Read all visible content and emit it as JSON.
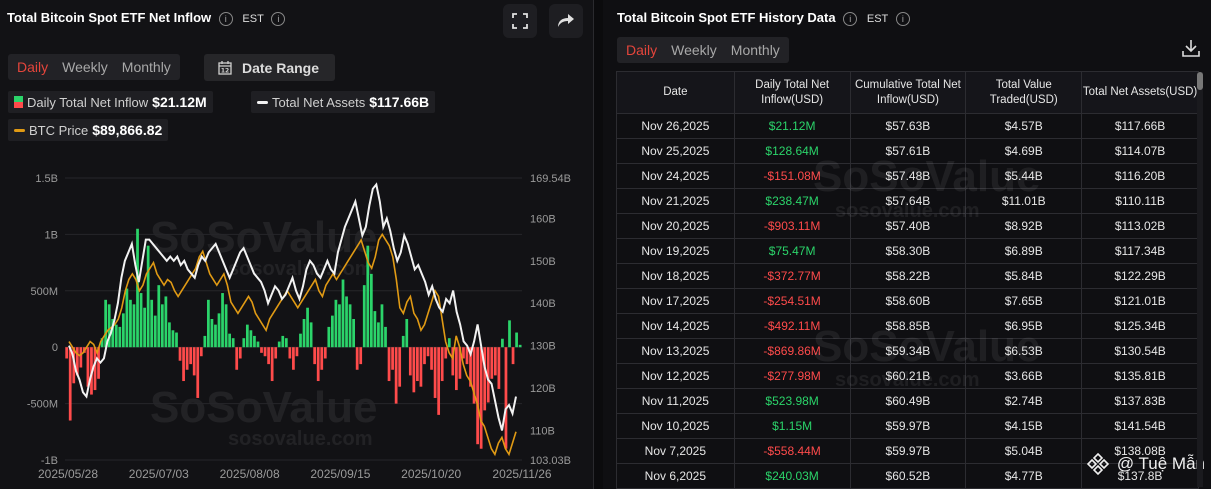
{
  "left": {
    "title": "Total Bitcoin Spot ETF Net Inflow",
    "timezone": "EST",
    "tabs": [
      "Daily",
      "Weekly",
      "Monthly"
    ],
    "active_tab": "Daily",
    "date_range_label": "Date Range",
    "legend": {
      "inflow_label": "Daily Total Net Inflow",
      "inflow_value": "$21.12M",
      "assets_label": "Total Net Assets",
      "assets_value": "$117.66B",
      "btc_label": "BTC Price",
      "btc_value": "$89,866.82"
    },
    "watermark_top": "SoSoValue",
    "watermark_top_sub": "sosovalue.com",
    "watermark_bottom": "SoSoValue",
    "watermark_bottom_sub": "sosovalue.com"
  },
  "right": {
    "title": "Total Bitcoin Spot ETF History Data",
    "timezone": "EST",
    "tabs": [
      "Daily",
      "Weekly",
      "Monthly"
    ],
    "active_tab": "Daily",
    "headers": [
      "Date",
      "Daily Total Net Inflow(USD)",
      "Cumulative Total Net Inflow(USD)",
      "Total Value Traded(USD)",
      "Total Net Assets(USD)"
    ],
    "rows": [
      [
        "Nov 26,2025",
        "$21.12M",
        "$57.63B",
        "$4.57B",
        "$117.66B"
      ],
      [
        "Nov 25,2025",
        "$128.64M",
        "$57.61B",
        "$4.69B",
        "$114.07B"
      ],
      [
        "Nov 24,2025",
        "-$151.08M",
        "$57.48B",
        "$5.44B",
        "$116.20B"
      ],
      [
        "Nov 21,2025",
        "$238.47M",
        "$57.64B",
        "$11.01B",
        "$110.11B"
      ],
      [
        "Nov 20,2025",
        "-$903.11M",
        "$57.40B",
        "$8.92B",
        "$113.02B"
      ],
      [
        "Nov 19,2025",
        "$75.47M",
        "$58.30B",
        "$6.89B",
        "$117.34B"
      ],
      [
        "Nov 18,2025",
        "-$372.77M",
        "$58.22B",
        "$5.84B",
        "$122.29B"
      ],
      [
        "Nov 17,2025",
        "-$254.51M",
        "$58.60B",
        "$7.65B",
        "$121.01B"
      ],
      [
        "Nov 14,2025",
        "-$492.11M",
        "$58.85B",
        "$6.95B",
        "$125.34B"
      ],
      [
        "Nov 13,2025",
        "-$869.86M",
        "$59.34B",
        "$6.53B",
        "$130.54B"
      ],
      [
        "Nov 12,2025",
        "-$277.98M",
        "$60.21B",
        "$3.66B",
        "$135.81B"
      ],
      [
        "Nov 11,2025",
        "$523.98M",
        "$60.49B",
        "$2.74B",
        "$137.83B"
      ],
      [
        "Nov 10,2025",
        "$1.15M",
        "$59.97B",
        "$4.15B",
        "$141.54B"
      ],
      [
        "Nov 7,2025",
        "-$558.44M",
        "$59.97B",
        "$5.04B",
        "$138.08B"
      ],
      [
        "Nov 6,2025",
        "$240.03M",
        "$60.52B",
        "$4.77B",
        "$137.8B"
      ]
    ],
    "watermark": "SoSoValue",
    "watermark_sub": "sosovalue.com",
    "credit": "@ Tuệ Mẫn"
  },
  "colors": {
    "inflow_pos": "#2bd46a",
    "inflow_neg": "#ff4b4b",
    "assets_line": "#f2f2f2",
    "btc_line": "#e09a14",
    "active_tab": "#e4453b"
  },
  "chart_data": {
    "type": "bar+line",
    "title": "Total Bitcoin Spot ETF Net Inflow",
    "x_ticks": [
      "2025/05/28",
      "2025/07/03",
      "2025/08/08",
      "2025/09/15",
      "2025/10/20",
      "2025/11/26"
    ],
    "left_axis_ticks": [
      "1.5B",
      "1B",
      "500M",
      "0",
      "-500M",
      "-1B"
    ],
    "left_ylim": [
      -1000,
      1500
    ],
    "right_axis_ticks": [
      "169.54B",
      "160B",
      "150B",
      "140B",
      "130B",
      "120B",
      "110B",
      "103.03B"
    ],
    "right_ylim": [
      103.03,
      169.54
    ],
    "series": [
      {
        "name": "Daily Total Net Inflow",
        "unit": "M USD",
        "values": [
          -100,
          -650,
          -320,
          -250,
          -180,
          -50,
          -350,
          -420,
          -380,
          -280,
          80,
          420,
          380,
          250,
          200,
          180,
          300,
          520,
          420,
          380,
          1050,
          480,
          350,
          900,
          420,
          280,
          550,
          380,
          450,
          220,
          150,
          130,
          -120,
          -300,
          -200,
          -150,
          -250,
          -450,
          -80,
          100,
          420,
          250,
          200,
          300,
          480,
          380,
          120,
          80,
          -200,
          -100,
          80,
          200,
          150,
          100,
          50,
          -50,
          -80,
          -150,
          -300,
          -100,
          50,
          100,
          80,
          -100,
          -200,
          -80,
          120,
          250,
          350,
          220,
          -150,
          -300,
          -200,
          -100,
          180,
          280,
          420,
          380,
          600,
          450,
          380,
          250,
          -200,
          -150,
          550,
          900,
          650,
          320,
          220,
          380,
          180,
          -300,
          -200,
          -500,
          -350,
          100,
          250,
          -250,
          -400,
          -300,
          -350,
          -150,
          -80,
          -200,
          -450,
          -600,
          -300,
          -100,
          80,
          -250,
          -380,
          -280,
          -100,
          -150,
          -350,
          -500,
          -860,
          -900,
          -560,
          -490,
          -280,
          -250,
          -370,
          75,
          -900,
          238,
          -150,
          130,
          21
        ]
      },
      {
        "name": "Total Net Assets",
        "unit": "B USD",
        "values": [
          130,
          128,
          124,
          122,
          119,
          118,
          122,
          125,
          127,
          126,
          127,
          131,
          133,
          136,
          140,
          146,
          150,
          152,
          154,
          149,
          145,
          150,
          155,
          155,
          154,
          153,
          152,
          151,
          150,
          151,
          150,
          151,
          149,
          150,
          148,
          147,
          146,
          149,
          151,
          150,
          152,
          153,
          154,
          152,
          150,
          148,
          146,
          148,
          150,
          152,
          153,
          151,
          149,
          147,
          146,
          145,
          143,
          140,
          142,
          144,
          143,
          141,
          142,
          144,
          146,
          143,
          141,
          144,
          148,
          150,
          149,
          147,
          146,
          148,
          150,
          148,
          147,
          152,
          155,
          158,
          160,
          162,
          164,
          160,
          156,
          158,
          163,
          167,
          168,
          164,
          158,
          160,
          157,
          153,
          150,
          152,
          156,
          154,
          151,
          148,
          149,
          147,
          145,
          142,
          144,
          141,
          139,
          138,
          141,
          140,
          143,
          138,
          135,
          131,
          130,
          128,
          131,
          135,
          130,
          125,
          122,
          121,
          117,
          113,
          110,
          115,
          116,
          114,
          118
        ]
      },
      {
        "name": "BTC Price",
        "unit": "K USD",
        "values": [
          106,
          105,
          104,
          103.5,
          104,
          105,
          106,
          105.5,
          104,
          106,
          107,
          108,
          108.5,
          109,
          110,
          112,
          115,
          117,
          118,
          117,
          115,
          116,
          118,
          119,
          120,
          118,
          117,
          116,
          117,
          116.5,
          115,
          114,
          115,
          116,
          117,
          118,
          119,
          121,
          122,
          120,
          118,
          117,
          116,
          117,
          118,
          116,
          113,
          112,
          111,
          112,
          113,
          114,
          113,
          111,
          110,
          109,
          108,
          110,
          111,
          112,
          113,
          114,
          115,
          114,
          113,
          112,
          113,
          114,
          115,
          116,
          117,
          115,
          114,
          116,
          117,
          118,
          117,
          118,
          119,
          120,
          121,
          122,
          123,
          124,
          122,
          120,
          119,
          121,
          124,
          125,
          124,
          123,
          121,
          117,
          112,
          111,
          113,
          114,
          111,
          110,
          108,
          109,
          111,
          113,
          115,
          114,
          110,
          106,
          104,
          103,
          107,
          105,
          102,
          100,
          99,
          97,
          95,
          92,
          91,
          89,
          87,
          86,
          88,
          89,
          87,
          86,
          88,
          90
        ]
      }
    ]
  }
}
